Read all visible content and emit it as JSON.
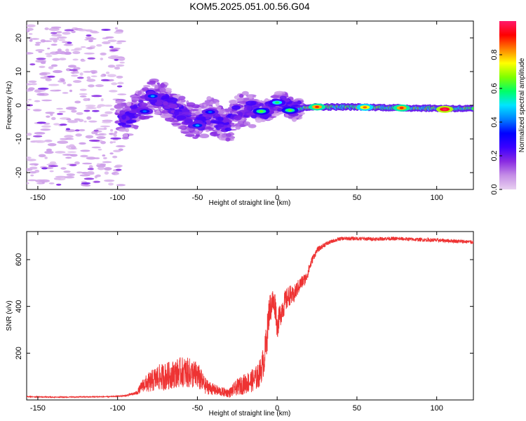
{
  "title": "KOM5.2025.051.00.56.G04",
  "chart_data": [
    {
      "type": "heatmap",
      "xlabel": "Height of straight line (km)",
      "ylabel": "Frequency (Hz)",
      "xlim": [
        -157,
        123
      ],
      "ylim": [
        -25,
        25
      ],
      "xticks": [
        -150,
        -100,
        -50,
        0,
        50,
        100
      ],
      "yticks": [
        -20,
        -10,
        0,
        10,
        20
      ],
      "colorbar": {
        "label": "Normalized spectral amplitude",
        "range": [
          0,
          1
        ],
        "ticks": [
          0.0,
          0.2,
          0.4,
          0.6,
          0.8
        ],
        "colormap": [
          "#e8d0f0",
          "#c58ee6",
          "#8a2be2",
          "#3b00ff",
          "#0000ff",
          "#0080ff",
          "#00e5ff",
          "#00ff66",
          "#7fff00",
          "#ffff00",
          "#ff8000",
          "#ff0000",
          "#ff1a6c"
        ]
      },
      "ridge": [
        {
          "x": -155,
          "f": 0.0
        },
        {
          "x": -100,
          "f": -2.0
        },
        {
          "x": -95,
          "f": -5.0
        },
        {
          "x": -90,
          "f": -2.5
        },
        {
          "x": -85,
          "f": 0.0
        },
        {
          "x": -78,
          "f": 2.5
        },
        {
          "x": -70,
          "f": 1.5
        },
        {
          "x": -62,
          "f": -2.0
        },
        {
          "x": -55,
          "f": -4.0
        },
        {
          "x": -48,
          "f": -5.5
        },
        {
          "x": -42,
          "f": -2.5
        },
        {
          "x": -38,
          "f": -4.5
        },
        {
          "x": -32,
          "f": -6.5
        },
        {
          "x": -25,
          "f": -2.0
        },
        {
          "x": -18,
          "f": -1.0
        },
        {
          "x": -10,
          "f": -1.8
        },
        {
          "x": -5,
          "f": -1.5
        },
        {
          "x": 0,
          "f": 0.5
        },
        {
          "x": 5,
          "f": 0.8
        },
        {
          "x": 10,
          "f": -1.5
        },
        {
          "x": 20,
          "f": -0.5
        },
        {
          "x": 50,
          "f": -0.5
        },
        {
          "x": 80,
          "f": -0.8
        },
        {
          "x": 123,
          "f": -1.0
        }
      ],
      "hotspots": [
        {
          "x": -78,
          "f": 2.7,
          "amp": 0.35
        },
        {
          "x": -83,
          "f": -1.8,
          "amp": 0.3
        },
        {
          "x": -50,
          "f": -6.0,
          "amp": 0.35
        },
        {
          "x": -42,
          "f": -2.0,
          "amp": 0.3
        },
        {
          "x": -10,
          "f": -1.8,
          "amp": 0.55
        },
        {
          "x": 0,
          "f": 0.8,
          "amp": 0.5
        },
        {
          "x": 8,
          "f": -1.5,
          "amp": 0.55
        },
        {
          "x": 25,
          "f": -0.5,
          "amp": 0.8
        },
        {
          "x": 55,
          "f": -0.6,
          "amp": 0.75
        },
        {
          "x": 78,
          "f": -0.8,
          "amp": 0.8
        },
        {
          "x": 105,
          "f": -1.2,
          "amp": 0.95
        }
      ]
    },
    {
      "type": "line",
      "xlabel": "Height of straight line (km)",
      "ylabel": "SNR (v/v)",
      "xlim": [
        -157,
        123
      ],
      "ylim": [
        0,
        720
      ],
      "xticks": [
        -150,
        -100,
        -50,
        0,
        50,
        100
      ],
      "yticks": [
        200,
        400,
        600
      ],
      "color": "#ee3333",
      "series": [
        {
          "x": [
            -157,
            -140,
            -120,
            -105,
            -95,
            -88,
            -84,
            -80,
            -75,
            -70,
            -65,
            -60,
            -55,
            -50,
            -45,
            -40,
            -35,
            -30,
            -25,
            -20,
            -15,
            -12,
            -10,
            -8,
            -6,
            -5,
            -3,
            -1,
            0,
            2,
            5,
            8,
            10,
            12,
            15,
            18,
            20,
            22,
            25,
            30,
            35,
            40,
            45,
            50,
            60,
            70,
            80,
            90,
            100,
            110,
            123
          ],
          "y": [
            14,
            12,
            13,
            14,
            18,
            30,
            65,
            75,
            95,
            100,
            110,
            120,
            115,
            105,
            60,
            45,
            35,
            30,
            55,
            70,
            85,
            100,
            130,
            180,
            300,
            380,
            420,
            400,
            310,
            370,
            420,
            450,
            440,
            470,
            500,
            520,
            560,
            600,
            640,
            665,
            680,
            690,
            690,
            690,
            688,
            690,
            688,
            685,
            683,
            680,
            675
          ],
          "noise": [
            2,
            2,
            2,
            2,
            4,
            8,
            30,
            45,
            55,
            60,
            60,
            65,
            65,
            60,
            35,
            25,
            20,
            20,
            35,
            45,
            50,
            55,
            60,
            70,
            80,
            70,
            60,
            60,
            50,
            55,
            50,
            45,
            40,
            35,
            30,
            25,
            22,
            18,
            12,
            10,
            8,
            8,
            8,
            8,
            8,
            8,
            8,
            8,
            8,
            8,
            8
          ]
        }
      ]
    }
  ]
}
